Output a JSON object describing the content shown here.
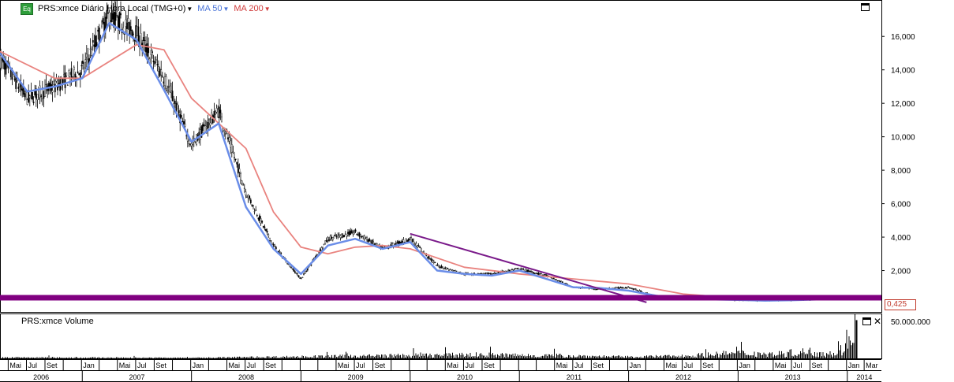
{
  "legend": {
    "symbol_label": "PRS:xmce Diário Hora Local (TMG+0)",
    "ma50_label": "MA 50",
    "ma200_label": "MA 200",
    "eq_badge": "Eq",
    "ma50_color": "#6a8de8",
    "ma200_color": "#e9837f"
  },
  "volume_panel": {
    "title": "PRS:xmce Volume",
    "axis_label": "50.000.000"
  },
  "last_price_label": "0,425",
  "colors": {
    "trendline": "#7a1a8a",
    "support_band": "#800080",
    "candles": "#000000"
  },
  "chart_data": {
    "type": "line",
    "title": "PRS:xmce Diário Hora Local (TMG+0)",
    "y_ticks": [
      "2,000",
      "4,000",
      "6,000",
      "8,000",
      "10,000",
      "12,000",
      "14,000",
      "16,000"
    ],
    "ylim": [
      0,
      17800
    ],
    "x_month_labels": [
      "Mai",
      "Jul",
      "Set",
      "Jan",
      "Mai",
      "Jul",
      "Set",
      "Jan",
      "Mai",
      "Jul",
      "Set",
      "Mai",
      "Jul",
      "Set",
      "Mai",
      "Jul",
      "Set",
      "Mai",
      "Jul",
      "Set",
      "Jan",
      "Mai",
      "Jul",
      "Set",
      "Jan",
      "Mai",
      "Jul",
      "Set",
      "Jan",
      "Mar"
    ],
    "x_year_labels": [
      "2006",
      "2007",
      "2008",
      "2009",
      "2010",
      "2011",
      "2012",
      "2013",
      "2014"
    ],
    "series": [
      {
        "name": "PRS:xmce",
        "x": [
          "2006-04",
          "2006-07",
          "2006-10",
          "2007-01",
          "2007-04",
          "2007-07",
          "2007-10",
          "2008-01",
          "2008-04",
          "2008-07",
          "2008-10",
          "2009-01",
          "2009-04",
          "2009-07",
          "2009-10",
          "2010-01",
          "2010-04",
          "2010-07",
          "2010-10",
          "2011-01",
          "2011-04",
          "2011-07",
          "2011-10",
          "2012-01",
          "2012-04",
          "2012-07",
          "2012-10",
          "2013-01",
          "2013-04",
          "2013-07",
          "2013-10",
          "2014-01",
          "2014-02"
        ],
        "values": [
          14700,
          12300,
          13000,
          14000,
          17300,
          16200,
          13600,
          9500,
          11600,
          6700,
          3500,
          1500,
          3900,
          4300,
          3300,
          3900,
          2300,
          1800,
          1800,
          2100,
          1700,
          1000,
          900,
          1000,
          450,
          400,
          350,
          250,
          230,
          250,
          300,
          420,
          425
        ]
      },
      {
        "name": "MA 50",
        "x": [
          "2006-04",
          "2006-07",
          "2006-10",
          "2007-01",
          "2007-04",
          "2007-07",
          "2007-10",
          "2008-01",
          "2008-04",
          "2008-07",
          "2008-10",
          "2009-01",
          "2009-04",
          "2009-07",
          "2009-10",
          "2010-01",
          "2010-04",
          "2010-07",
          "2010-10",
          "2011-01",
          "2011-04",
          "2011-07",
          "2011-10",
          "2012-01",
          "2012-04",
          "2012-07",
          "2012-10",
          "2013-01",
          "2013-04",
          "2013-07",
          "2013-10",
          "2014-01"
        ],
        "values": [
          15000,
          12700,
          13000,
          13500,
          16800,
          15800,
          12800,
          9700,
          10800,
          5800,
          3300,
          1800,
          3500,
          3900,
          3300,
          3700,
          2000,
          1800,
          1700,
          2000,
          1500,
          1000,
          950,
          800,
          500,
          300,
          280,
          250,
          200,
          230,
          280,
          400
        ]
      },
      {
        "name": "MA 200",
        "x": [
          "2006-04",
          "2006-10",
          "2007-01",
          "2007-07",
          "2007-10",
          "2008-01",
          "2008-07",
          "2008-10",
          "2009-01",
          "2009-04",
          "2009-07",
          "2009-10",
          "2010-01",
          "2010-07",
          "2011-01",
          "2011-07",
          "2012-01",
          "2012-07",
          "2013-01",
          "2013-07",
          "2014-01"
        ],
        "values": [
          15100,
          13500,
          13500,
          15500,
          15200,
          12300,
          9300,
          5500,
          3400,
          3000,
          3400,
          3500,
          3300,
          2200,
          1800,
          1500,
          1200,
          600,
          350,
          250,
          300
        ]
      },
      {
        "name": "Trendline",
        "x": [
          "2010-01",
          "2012-03"
        ],
        "values": [
          4200,
          100
        ]
      },
      {
        "name": "Support",
        "x": [
          "2006-04",
          "2014-03"
        ],
        "values": [
          425,
          425
        ]
      }
    ],
    "volume": {
      "x": [
        "2006-04",
        "2008-01",
        "2010-09",
        "2011-01",
        "2011-06",
        "2012-01",
        "2012-07",
        "2013-01",
        "2013-05",
        "2013-09",
        "2013-12",
        "2014-02"
      ],
      "values": [
        1500000,
        1000000,
        6000000,
        5000000,
        4500000,
        2500000,
        4000000,
        8500000,
        7000000,
        11000000,
        7500000,
        55000000
      ]
    },
    "grid": true,
    "legend_position": "top-left"
  }
}
